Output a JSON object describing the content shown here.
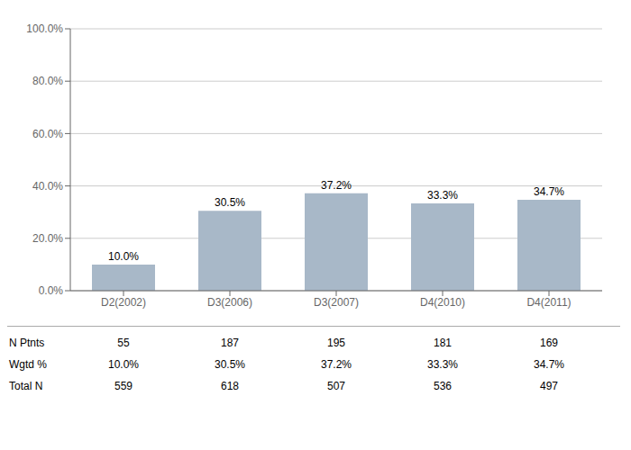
{
  "chart_data": {
    "type": "bar",
    "categories": [
      "D2(2002)",
      "D3(2006)",
      "D3(2007)",
      "D4(2010)",
      "D4(2011)"
    ],
    "values": [
      10.0,
      30.5,
      37.2,
      33.3,
      34.7
    ],
    "value_labels": [
      "10.0%",
      "30.5%",
      "37.2%",
      "33.3%",
      "34.7%"
    ],
    "data_labels": true,
    "color": "#a8b8c8",
    "ylim": [
      0,
      100
    ],
    "yticks": [
      {
        "value": 0,
        "label": "0.0%"
      },
      {
        "value": 20,
        "label": "20.0%"
      },
      {
        "value": 40,
        "label": "40.0%"
      },
      {
        "value": 60,
        "label": "60.0%"
      },
      {
        "value": 80,
        "label": "80.0%"
      },
      {
        "value": 100,
        "label": "100.0%"
      }
    ],
    "grid": true,
    "table": [
      {
        "label": "N Ptnts",
        "values": [
          55,
          187,
          195,
          181,
          169
        ]
      },
      {
        "label": "Wgtd %",
        "values": [
          10.0,
          30.5,
          37.2,
          33.3,
          34.7
        ],
        "value_labels": [
          "10.0%",
          "30.5%",
          "37.2%",
          "33.3%",
          "34.7%"
        ]
      },
      {
        "label": "Total N",
        "values": [
          559,
          618,
          507,
          536,
          497
        ]
      }
    ]
  }
}
